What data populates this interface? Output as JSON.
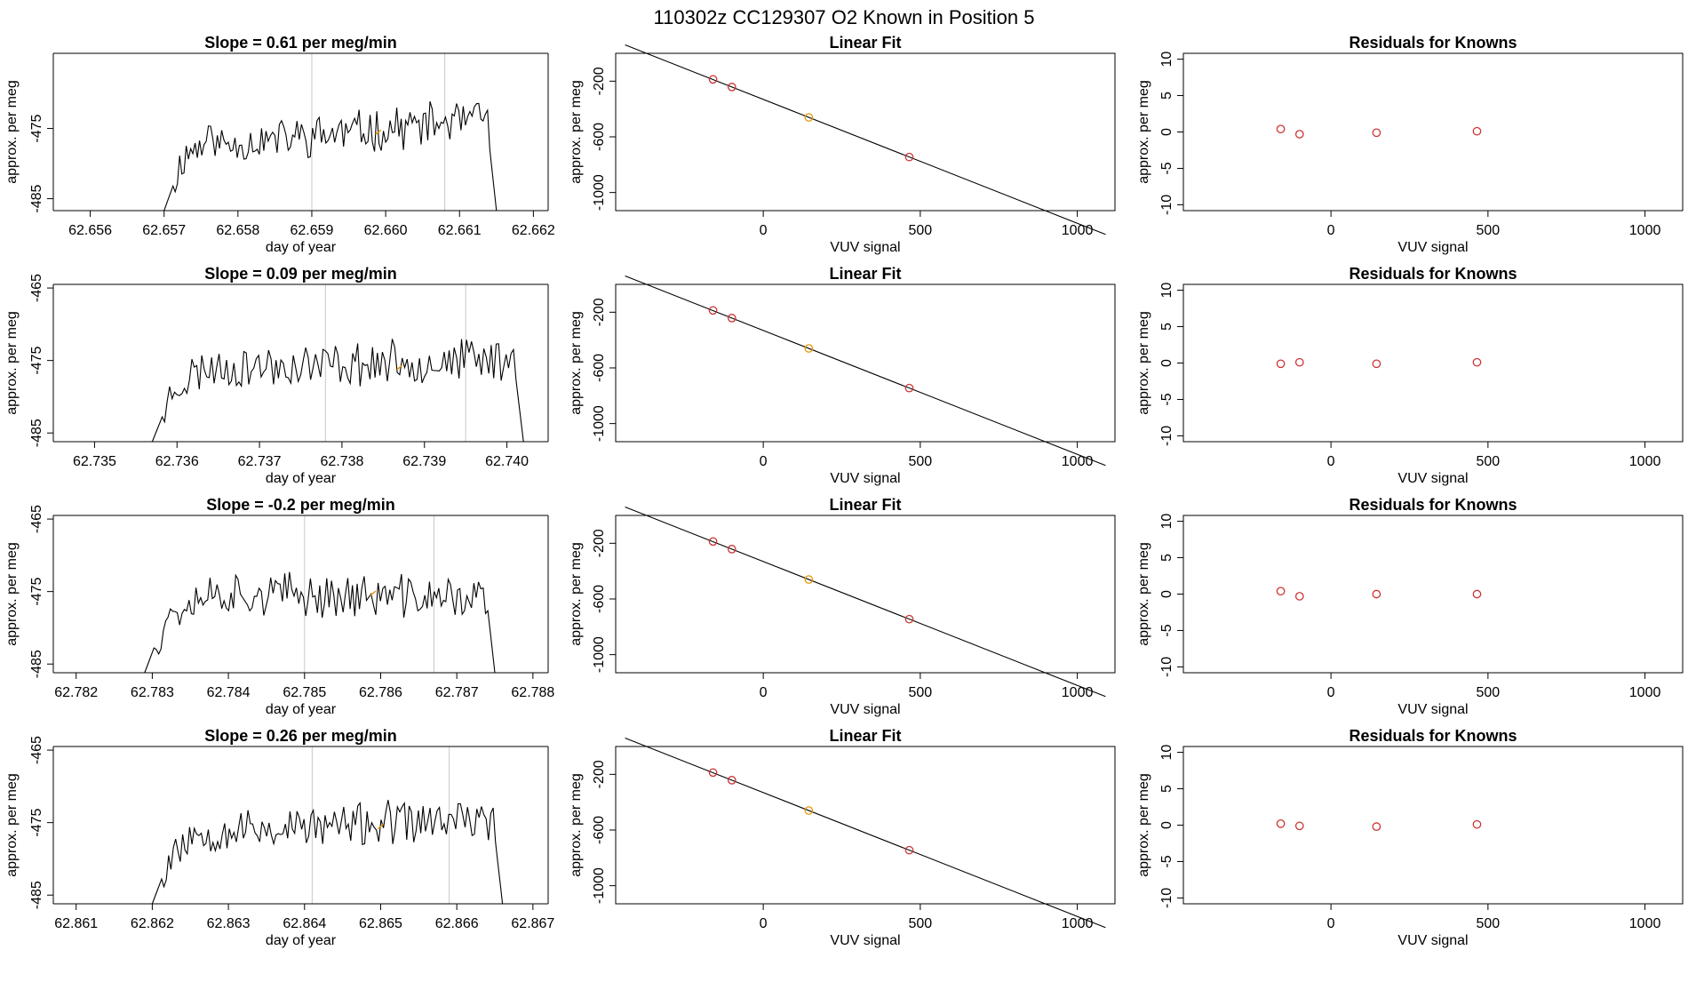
{
  "figure": {
    "title": "110302z      CC129307    O2 Known in Position  5"
  },
  "chart_data": [
    {
      "row": 1,
      "timeseries": {
        "type": "line",
        "title": "Slope =  0.61  per meg/min",
        "xlabel": "day of year",
        "ylabel": "approx. per meg",
        "xlim": [
          62.6555,
          62.6622
        ],
        "ylim": [
          -486.7,
          -464.3
        ],
        "xticks": [
          "62.656",
          "62.657",
          "62.658",
          "62.659",
          "62.660",
          "62.661",
          "62.662"
        ],
        "yticks": [
          "-485",
          "-475"
        ],
        "vlines": [
          62.659,
          62.6608
        ],
        "start": 62.657,
        "end": 62.6615,
        "baseline": -486.7,
        "level": -475.8,
        "rise": 4.5,
        "seed": 11,
        "marker": {
          "x": 62.6599,
          "y": -475.6
        }
      },
      "linear_fit": {
        "type": "scatter",
        "title": "Linear Fit",
        "xlabel": "VUV signal",
        "ylabel": "approx. per meg",
        "xlim": [
          -470,
          1120
        ],
        "ylim": [
          -1130,
          0
        ],
        "xticks": [
          "0",
          "500",
          "1000"
        ],
        "yticks": [
          "-200",
          "-600",
          "-1000"
        ],
        "line": {
          "slope": -0.89,
          "intercept": -331
        },
        "points": [
          {
            "x": -160,
            "y": -187,
            "color": "#cd3333"
          },
          {
            "x": -100,
            "y": -242,
            "color": "#cd3333"
          },
          {
            "x": 145,
            "y": -460,
            "color": "#e69500"
          },
          {
            "x": 465,
            "y": -745,
            "color": "#cd3333"
          }
        ]
      },
      "residuals": {
        "type": "scatter",
        "title": "Residuals for Knowns",
        "xlabel": "VUV signal",
        "ylabel": "approx. per meg",
        "xlim": [
          -470,
          1120
        ],
        "ylim": [
          -10.8,
          10.8
        ],
        "xticks": [
          "0",
          "500",
          "1000"
        ],
        "yticks": [
          "10",
          "5",
          "0",
          "-5",
          "-10"
        ],
        "points": [
          {
            "x": -160,
            "y": 0.4,
            "color": "#cd3333"
          },
          {
            "x": -100,
            "y": -0.3,
            "color": "#cd3333"
          },
          {
            "x": 145,
            "y": -0.1,
            "color": "#cd3333"
          },
          {
            "x": 465,
            "y": 0.1,
            "color": "#cd3333"
          }
        ]
      }
    },
    {
      "row": 2,
      "timeseries": {
        "type": "line",
        "title": "Slope =  0.09  per meg/min",
        "xlabel": "day of year",
        "ylabel": "approx. per meg",
        "xlim": [
          62.7345,
          62.7405
        ],
        "ylim": [
          -486.2,
          -464.5
        ],
        "xticks": [
          "62.735",
          "62.736",
          "62.737",
          "62.738",
          "62.739",
          "62.740"
        ],
        "yticks": [
          "-465",
          "-475",
          "-485"
        ],
        "vlines": [
          62.7378,
          62.7395
        ],
        "start": 62.7357,
        "end": 62.7402,
        "baseline": -486.2,
        "level": -475.5,
        "rise": 1.5,
        "seed": 23,
        "marker": {
          "x": 62.7387,
          "y": -476.0
        }
      },
      "linear_fit": {
        "type": "scatter",
        "title": "Linear Fit",
        "xlabel": "VUV signal",
        "ylabel": "approx. per meg",
        "xlim": [
          -470,
          1120
        ],
        "ylim": [
          -1130,
          0
        ],
        "xticks": [
          "0",
          "500",
          "1000"
        ],
        "yticks": [
          "-200",
          "-600",
          "-1000"
        ],
        "line": {
          "slope": -0.89,
          "intercept": -331
        },
        "points": [
          {
            "x": -160,
            "y": -187,
            "color": "#cd3333"
          },
          {
            "x": -100,
            "y": -242,
            "color": "#cd3333"
          },
          {
            "x": 145,
            "y": -460,
            "color": "#e69500"
          },
          {
            "x": 465,
            "y": -745,
            "color": "#cd3333"
          }
        ]
      },
      "residuals": {
        "type": "scatter",
        "title": "Residuals for Knowns",
        "xlabel": "VUV signal",
        "ylabel": "approx. per meg",
        "xlim": [
          -470,
          1120
        ],
        "ylim": [
          -10.8,
          10.8
        ],
        "xticks": [
          "0",
          "500",
          "1000"
        ],
        "yticks": [
          "10",
          "5",
          "0",
          "-5",
          "-10"
        ],
        "points": [
          {
            "x": -160,
            "y": -0.1,
            "color": "#cd3333"
          },
          {
            "x": -100,
            "y": 0.1,
            "color": "#cd3333"
          },
          {
            "x": 145,
            "y": -0.1,
            "color": "#cd3333"
          },
          {
            "x": 465,
            "y": 0.1,
            "color": "#cd3333"
          }
        ]
      }
    },
    {
      "row": 3,
      "timeseries": {
        "type": "line",
        "title": "Slope =  -0.2  per meg/min",
        "xlabel": "day of year",
        "ylabel": "approx. per meg",
        "xlim": [
          62.7817,
          62.7882
        ],
        "ylim": [
          -486.2,
          -464.5
        ],
        "xticks": [
          "62.782",
          "62.783",
          "62.784",
          "62.785",
          "62.786",
          "62.787",
          "62.788"
        ],
        "yticks": [
          "-465",
          "-475",
          "-485"
        ],
        "vlines": [
          62.785,
          62.7867
        ],
        "start": 62.7829,
        "end": 62.7875,
        "baseline": -486.2,
        "level": -475.5,
        "rise": -1.0,
        "seed": 37,
        "marker": {
          "x": 62.7859,
          "y": -475.3
        }
      },
      "linear_fit": {
        "type": "scatter",
        "title": "Linear Fit",
        "xlabel": "VUV signal",
        "ylabel": "approx. per meg",
        "xlim": [
          -470,
          1120
        ],
        "ylim": [
          -1130,
          0
        ],
        "xticks": [
          "0",
          "500",
          "1000"
        ],
        "yticks": [
          "-200",
          "-600",
          "-1000"
        ],
        "line": {
          "slope": -0.89,
          "intercept": -331
        },
        "points": [
          {
            "x": -160,
            "y": -187,
            "color": "#cd3333"
          },
          {
            "x": -100,
            "y": -242,
            "color": "#cd3333"
          },
          {
            "x": 145,
            "y": -460,
            "color": "#e69500"
          },
          {
            "x": 465,
            "y": -745,
            "color": "#cd3333"
          }
        ]
      },
      "residuals": {
        "type": "scatter",
        "title": "Residuals for Knowns",
        "xlabel": "VUV signal",
        "ylabel": "approx. per meg",
        "xlim": [
          -470,
          1120
        ],
        "ylim": [
          -10.8,
          10.8
        ],
        "xticks": [
          "0",
          "500",
          "1000"
        ],
        "yticks": [
          "10",
          "5",
          "0",
          "-5",
          "-10"
        ],
        "points": [
          {
            "x": -160,
            "y": 0.4,
            "color": "#cd3333"
          },
          {
            "x": -100,
            "y": -0.3,
            "color": "#cd3333"
          },
          {
            "x": 145,
            "y": 0.0,
            "color": "#cd3333"
          },
          {
            "x": 465,
            "y": 0.0,
            "color": "#cd3333"
          }
        ]
      }
    },
    {
      "row": 4,
      "timeseries": {
        "type": "line",
        "title": "Slope =  0.26  per meg/min",
        "xlabel": "day of year",
        "ylabel": "approx. per meg",
        "xlim": [
          62.8607,
          62.8672
        ],
        "ylim": [
          -486.2,
          -464.5
        ],
        "xticks": [
          "62.861",
          "62.862",
          "62.863",
          "62.864",
          "62.865",
          "62.866",
          "62.867"
        ],
        "yticks": [
          "-465",
          "-475",
          "-485"
        ],
        "vlines": [
          62.8641,
          62.8659
        ],
        "start": 62.862,
        "end": 62.8666,
        "baseline": -486.2,
        "level": -475.5,
        "rise": 2.0,
        "seed": 53,
        "marker": {
          "x": 62.865,
          "y": -475.6
        }
      },
      "linear_fit": {
        "type": "scatter",
        "title": "Linear Fit",
        "xlabel": "VUV signal",
        "ylabel": "approx. per meg",
        "xlim": [
          -470,
          1120
        ],
        "ylim": [
          -1130,
          0
        ],
        "xticks": [
          "0",
          "500",
          "1000"
        ],
        "yticks": [
          "-200",
          "-600",
          "-1000"
        ],
        "line": {
          "slope": -0.89,
          "intercept": -331
        },
        "points": [
          {
            "x": -160,
            "y": -187,
            "color": "#cd3333"
          },
          {
            "x": -100,
            "y": -242,
            "color": "#cd3333"
          },
          {
            "x": 145,
            "y": -460,
            "color": "#e69500"
          },
          {
            "x": 465,
            "y": -745,
            "color": "#cd3333"
          }
        ]
      },
      "residuals": {
        "type": "scatter",
        "title": "Residuals for Knowns",
        "xlabel": "VUV signal",
        "ylabel": "approx. per meg",
        "xlim": [
          -470,
          1120
        ],
        "ylim": [
          -10.8,
          10.8
        ],
        "xticks": [
          "0",
          "500",
          "1000"
        ],
        "yticks": [
          "10",
          "5",
          "0",
          "-5",
          "-10"
        ],
        "points": [
          {
            "x": -160,
            "y": 0.2,
            "color": "#cd3333"
          },
          {
            "x": -100,
            "y": -0.1,
            "color": "#cd3333"
          },
          {
            "x": 145,
            "y": -0.2,
            "color": "#cd3333"
          },
          {
            "x": 465,
            "y": 0.1,
            "color": "#cd3333"
          }
        ]
      }
    }
  ]
}
